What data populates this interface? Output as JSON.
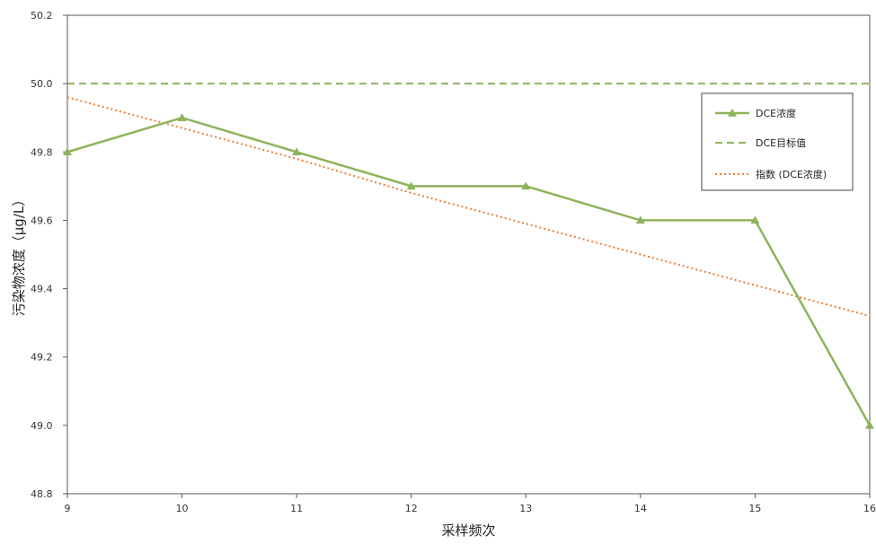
{
  "chart_data": {
    "type": "line",
    "xlabel": "采样频次",
    "ylabel": "污染物浓度（μg/L）",
    "x": [
      9,
      10,
      11,
      12,
      13,
      14,
      15,
      16
    ],
    "xlim": [
      9,
      16
    ],
    "ylim": [
      48.8,
      50.2
    ],
    "y_ticks": [
      "48.8",
      "49.0",
      "49.2",
      "49.4",
      "49.6",
      "49.8",
      "50.0",
      "50.2"
    ],
    "x_ticks": [
      "9",
      "10",
      "11",
      "12",
      "13",
      "14",
      "15",
      "16"
    ],
    "grid": false,
    "legend_position": "top-right",
    "series": [
      {
        "name": "DCE浓度",
        "style": "solid",
        "marker": "triangle",
        "color": "#8db45a",
        "values": [
          49.8,
          49.9,
          49.8,
          49.7,
          49.7,
          49.6,
          49.6,
          49.0
        ]
      },
      {
        "name": "DCE目标值",
        "style": "dashed",
        "color": "#8db45a",
        "values": [
          50.0,
          50.0,
          50.0,
          50.0,
          50.0,
          50.0,
          50.0,
          50.0
        ]
      },
      {
        "name": "指数 (DCE浓度)",
        "style": "dotted",
        "color": "#ed7d31",
        "values": [
          49.96,
          49.87,
          49.78,
          49.68,
          49.59,
          49.5,
          49.41,
          49.32
        ]
      }
    ]
  }
}
